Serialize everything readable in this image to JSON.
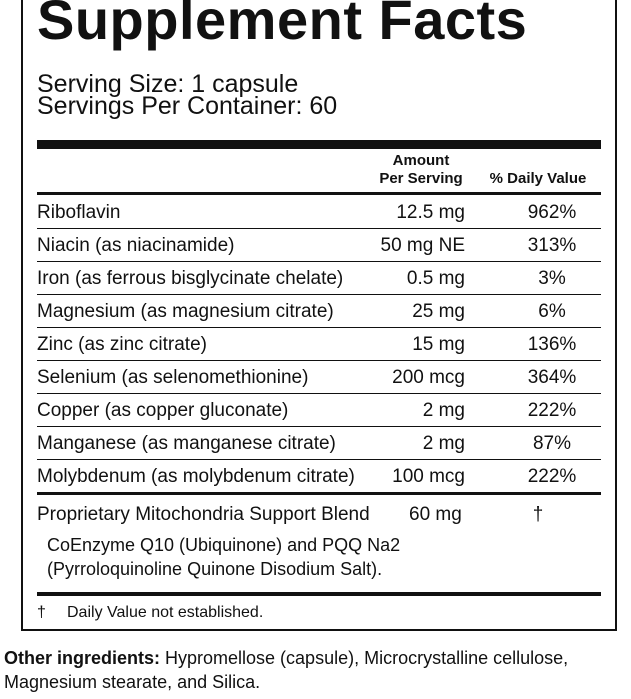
{
  "label": {
    "title": "Supplement Facts",
    "serving_size": "Serving Size: 1 capsule",
    "servings_per_container": "Servings Per Container: 60",
    "header_amount_line1": "Amount",
    "header_amount_line2": "Per Serving",
    "header_dv": "% Daily Value",
    "rows": [
      {
        "name": "Riboflavin",
        "amount": "12.5 mg",
        "dv": "962%"
      },
      {
        "name": "Niacin (as niacinamide)",
        "amount": "50 mg NE",
        "dv": "313%"
      },
      {
        "name": "Iron (as ferrous bisglycinate chelate)",
        "amount": "0.5 mg",
        "dv": "3%"
      },
      {
        "name": "Magnesium (as magnesium citrate)",
        "amount": "25 mg",
        "dv": "6%"
      },
      {
        "name": "Zinc (as zinc citrate)",
        "amount": "15 mg",
        "dv": "136%"
      },
      {
        "name": "Selenium (as selenomethionine)",
        "amount": "200 mcg",
        "dv": "364%"
      },
      {
        "name": "Copper (as copper gluconate)",
        "amount": "2 mg",
        "dv": "222%"
      },
      {
        "name": "Manganese (as manganese citrate)",
        "amount": "2 mg",
        "dv": "87%"
      },
      {
        "name": "Molybdenum (as molybdenum citrate)",
        "amount": "100 mcg",
        "dv": "222%"
      }
    ],
    "blend": {
      "name": "Proprietary Mitochondria Support Blend",
      "amount": "60 mg",
      "dv": "†",
      "desc_line1": "CoEnzyme Q10 (Ubiquinone) and PQQ Na2",
      "desc_line2": "(Pyrroloquinoline Quinone Disodium Salt)."
    },
    "footnote_symbol": "†",
    "footnote_text": "Daily Value not established."
  },
  "other_ingredients": {
    "label": "Other ingredients:",
    "text": " Hypromellose (capsule), Microcrystalline cellulose, Magnesium stearate, and Silica."
  }
}
